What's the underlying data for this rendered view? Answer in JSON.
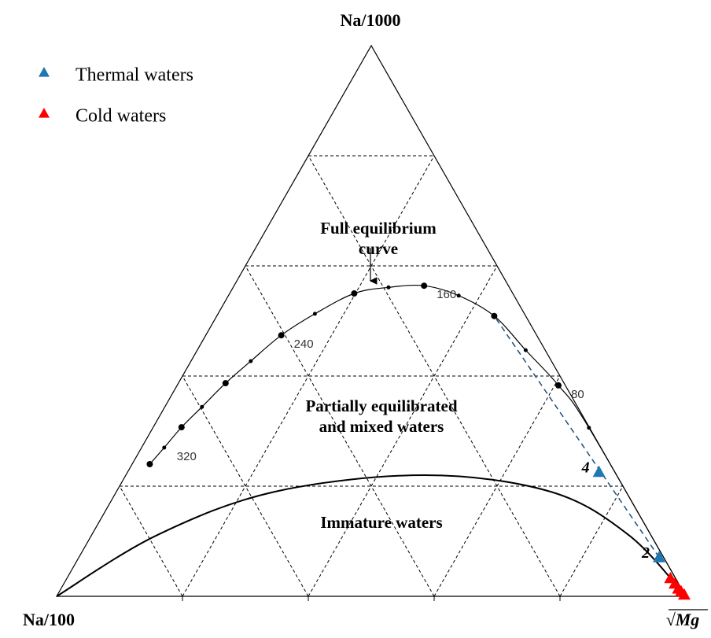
{
  "chart_data": {
    "type": "ternary",
    "top_label": "Na/1000",
    "left_label": "Na/100",
    "right_label": "√Mg",
    "lim": [
      0,
      100
    ],
    "ticks": [
      20,
      40,
      60,
      80
    ],
    "grid": true,
    "legend": "top-left",
    "regions": {
      "full": [
        "Full equilibrium",
        "curve"
      ],
      "partial": [
        "Partially equilibrated",
        "and mixed waters"
      ],
      "immature": [
        "Immature waters"
      ]
    },
    "equilibrium_curve": {
      "na1000": [
        24.0,
        27.0,
        30.7,
        34.4,
        38.7,
        42.7,
        47.4,
        51.3,
        55.0,
        56.1,
        56.4,
        54.6,
        50.9,
        44.7,
        38.3,
        30.6,
        0
      ],
      "na100": [
        73.2,
        69.4,
        64.8,
        59.7,
        53.8,
        47.8,
        40.6,
        33.3,
        25.2,
        19.2,
        13.4,
        8.8,
        5.0,
        3.1,
        1.1,
        0.1,
        0
      ],
      "mg": [
        2.8,
        3.6,
        4.5,
        5.9,
        7.5,
        9.5,
        12.0,
        15.4,
        19.8,
        24.7,
        30.2,
        36.6,
        44.1,
        52.2,
        60.6,
        69.3,
        100
      ],
      "temperatures": [
        null,
        320,
        null,
        null,
        null,
        null,
        240,
        null,
        null,
        null,
        160,
        null,
        null,
        null,
        80,
        null,
        null
      ]
    },
    "immature_curve": {
      "na1000": [
        0,
        11.1,
        19.0,
        22.0,
        19.0,
        11.1,
        0
      ],
      "na100": [
        100,
        78.5,
        55.8,
        30.5,
        12.0,
        3.5,
        0
      ],
      "mg": [
        0,
        10.4,
        25.2,
        47.5,
        69.0,
        85.4,
        100
      ]
    },
    "series": [
      {
        "name": "Thermal waters",
        "color": "#1f77b4",
        "na1000": [
          22.6,
          7.1
        ],
        "na100": [
          2.5,
          0.7
        ],
        "mg": [
          74.9,
          92.2
        ],
        "labels": [
          "4",
          "2"
        ]
      },
      {
        "name": "Cold waters",
        "color": "#ff0000",
        "na1000": [
          3.3,
          2.3,
          1.4,
          0.9,
          0.3
        ],
        "na100": [
          0.8,
          0.6,
          0.5,
          0.3,
          0.1
        ],
        "mg": [
          95.9,
          97.1,
          98.1,
          98.8,
          99.6
        ]
      }
    ]
  }
}
